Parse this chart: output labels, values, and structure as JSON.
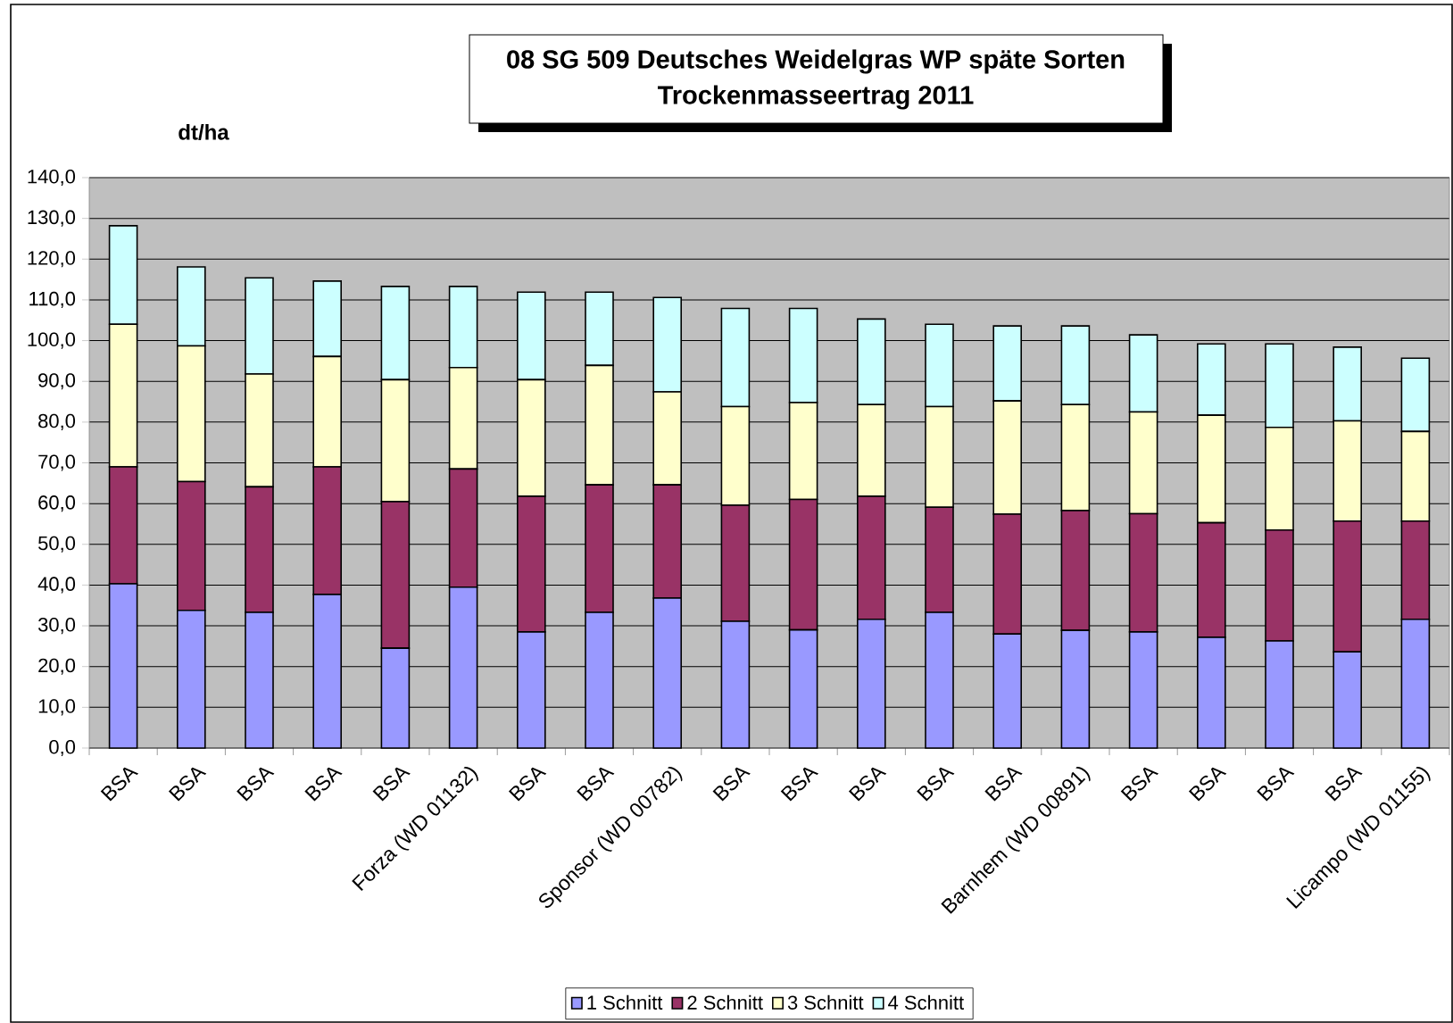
{
  "chart_data": {
    "type": "bar",
    "stacked": true,
    "title": "08 SG 509 Deutsches Weidelgras WP späte Sorten",
    "subtitle": "Trockenmasseertrag 2011",
    "ylabel": "dt/ha",
    "categories": [
      "BSA",
      "BSA",
      "BSA",
      "BSA",
      "BSA",
      "Forza (WD 01132)",
      "BSA",
      "BSA",
      "Sponsor (WD 00782)",
      "BSA",
      "BSA",
      "BSA",
      "BSA",
      "BSA",
      "Barnhem (WD 00891)",
      "BSA",
      "BSA",
      "BSA",
      "BSA",
      "Licampo (WD 01155)"
    ],
    "series": [
      {
        "name": "1 Schnitt",
        "color": "#9999ff",
        "values": [
          40.3,
          33.8,
          33.3,
          37.7,
          24.5,
          39.5,
          28.5,
          33.3,
          36.8,
          31.1,
          29.0,
          31.6,
          33.3,
          28.0,
          28.9,
          28.5,
          27.2,
          26.3,
          23.6,
          31.6
        ]
      },
      {
        "name": "2 Schnitt",
        "color": "#993366",
        "values": [
          28.7,
          31.6,
          30.8,
          31.3,
          36.0,
          29.0,
          33.3,
          31.3,
          27.8,
          28.5,
          32.0,
          30.2,
          25.8,
          29.4,
          29.4,
          29.0,
          28.1,
          27.2,
          32.1,
          24.1
        ]
      },
      {
        "name": "3 Schnitt",
        "color": "#ffffcc",
        "values": [
          35.0,
          33.3,
          27.7,
          27.1,
          29.9,
          24.9,
          28.6,
          29.3,
          22.8,
          24.2,
          23.8,
          22.5,
          24.7,
          27.8,
          26.0,
          25.0,
          26.4,
          25.2,
          24.6,
          22.0
        ]
      },
      {
        "name": "4 Schnitt",
        "color": "#ccffff",
        "values": [
          24.2,
          19.4,
          23.6,
          18.5,
          22.9,
          19.9,
          21.5,
          18.0,
          23.2,
          24.1,
          23.1,
          21.0,
          20.2,
          18.4,
          19.3,
          18.9,
          17.5,
          20.5,
          18.1,
          18.0
        ]
      }
    ],
    "ylim": [
      0,
      140
    ],
    "yticks": [
      {
        "value": 0,
        "label": "0,0"
      },
      {
        "value": 10,
        "label": "10,0"
      },
      {
        "value": 20,
        "label": "20,0"
      },
      {
        "value": 30,
        "label": "30,0"
      },
      {
        "value": 40,
        "label": "40,0"
      },
      {
        "value": 50,
        "label": "50,0"
      },
      {
        "value": 60,
        "label": "60,0"
      },
      {
        "value": 70,
        "label": "70,0"
      },
      {
        "value": 80,
        "label": "80,0"
      },
      {
        "value": 90,
        "label": "90,0"
      },
      {
        "value": 100,
        "label": "100,0"
      },
      {
        "value": 110,
        "label": "110,0"
      },
      {
        "value": 120,
        "label": "120,0"
      },
      {
        "value": 130,
        "label": "130,0"
      },
      {
        "value": 140,
        "label": "140,0"
      }
    ],
    "grid": "y",
    "legend": "bottom"
  }
}
